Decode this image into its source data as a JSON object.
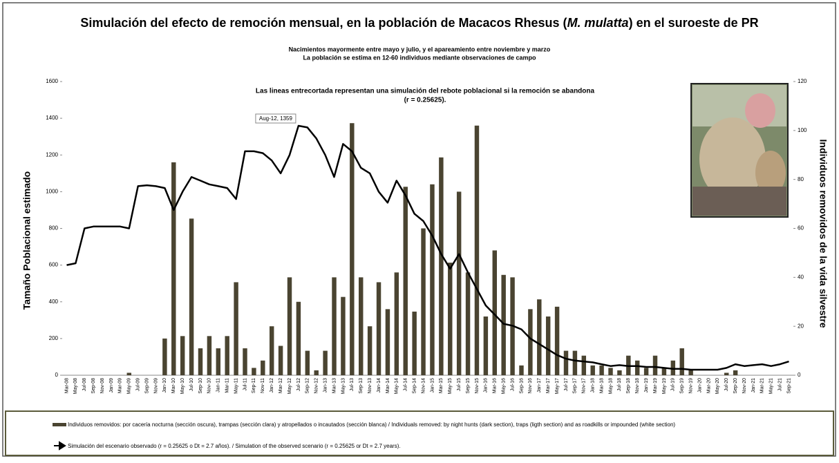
{
  "chart_data": {
    "type": "combo",
    "title": [
      "Simulación del efecto de remoción mensual, en la población de Macacos Rhesus (",
      "M. mulatta",
      ") en el suroeste de PR"
    ],
    "subtitle": [
      "Nacimientos mayormente  entre mayo y julio, y  el apareamiento entre noviembre y marzo",
      "La población se estima en 12-60 individuos mediante observaciones de campo"
    ],
    "annotation": [
      "Las lineas entrecortada representan una simulación del rebote poblacional si la remoción se abandona",
      "(r = 0.25625)."
    ],
    "callout": "Aug-12, 1359",
    "ylabel": "Tamaño Poblacional estimado",
    "y2label": "Individuos removidos de la vida silvestre",
    "categories": [
      "Mar-08",
      "May-08",
      "Jul-08",
      "Sep-08",
      "Nov-08",
      "Jan-09",
      "Mar-09",
      "May-09",
      "Jul-09",
      "Sep-09",
      "Nov-09",
      "Jan-10",
      "Mar-10",
      "May-10",
      "Jul-10",
      "Sep-10",
      "Nov-10",
      "Jan-11",
      "Mar-11",
      "May-11",
      "Jul-11",
      "Sep-11",
      "Nov-11",
      "Jan-12",
      "Mar-12",
      "May-12",
      "Jul-12",
      "Sep-12",
      "Nov-12",
      "Jan-13",
      "Mar-13",
      "May-13",
      "Jul-13",
      "Sep-13",
      "Nov-13",
      "Jan-14",
      "Mar-14",
      "May-14",
      "Jul-14",
      "Sep-14",
      "Nov-14",
      "Jan-15",
      "Mar-15",
      "May-15",
      "Jul-15",
      "Sep-15",
      "Nov-15",
      "Jan-16",
      "Mar-16",
      "May-16",
      "Jul-16",
      "Sep-16",
      "Nov-16",
      "Jan-17",
      "Mar-17",
      "May-17",
      "Jul-17",
      "Sep-17",
      "Nov-17",
      "Jan-18",
      "Mar-18",
      "May-18",
      "Jul-18",
      "Sep-18",
      "Nov-18",
      "Jan-19",
      "Mar-19",
      "May-19",
      "Jul-19",
      "Sep-19",
      "Nov-19",
      "Jan-20",
      "Mar-20",
      "May-20",
      "Jul-20",
      "Sep-20",
      "Nov-20",
      "Jan-21",
      "Mar-21",
      "May-21",
      "Jul-21",
      "Sep-21"
    ],
    "series": [
      {
        "name": "Individuos removidos: por cacería nocturna (sección oscura), trampas (sección clara) y atropellados o incautados (sección blanca) / Individuals removed: by night hunts (dark section), traps (ligth section) and as roadkills or impounded (white section)",
        "type": "bar",
        "axis": "y2",
        "color": "#4a4431",
        "values": [
          0,
          0,
          0,
          0,
          0,
          0,
          0,
          1,
          0,
          0,
          0,
          15,
          87,
          16,
          64,
          11,
          16,
          11,
          16,
          38,
          11,
          3,
          6,
          20,
          12,
          40,
          30,
          10,
          2,
          10,
          40,
          32,
          103,
          40,
          20,
          38,
          27,
          42,
          77,
          26,
          60,
          78,
          89,
          46,
          75,
          42,
          102,
          24,
          51,
          41,
          40,
          4,
          27,
          31,
          24,
          28,
          10,
          10,
          8,
          4,
          4,
          3,
          2,
          8,
          6,
          3,
          8,
          3,
          6,
          11,
          2,
          0,
          0,
          0,
          1,
          2,
          0,
          0,
          0,
          0,
          0,
          0
        ]
      },
      {
        "name": "Simulación del escenario observado (r = 0.25625 o Dt = 2.7 años). / Simulation of the observed scenario (r = 0.25625 or Dt = 2.7 years).",
        "type": "line",
        "axis": "y",
        "color": "#000000",
        "values": [
          600,
          610,
          800,
          810,
          810,
          810,
          810,
          800,
          1030,
          1035,
          1030,
          1020,
          900,
          1000,
          1080,
          1060,
          1040,
          1030,
          1020,
          960,
          1220,
          1220,
          1210,
          1170,
          1100,
          1200,
          1359,
          1350,
          1290,
          1200,
          1080,
          1260,
          1220,
          1130,
          1100,
          1000,
          940,
          1060,
          980,
          880,
          840,
          760,
          660,
          580,
          660,
          560,
          470,
          380,
          330,
          280,
          270,
          250,
          200,
          170,
          140,
          110,
          90,
          80,
          75,
          70,
          60,
          50,
          55,
          50,
          50,
          45,
          45,
          40,
          35,
          35,
          30,
          30,
          30,
          30,
          40,
          60,
          50,
          55,
          60,
          50,
          60,
          75
        ]
      }
    ],
    "ylim": [
      0,
      1600
    ],
    "yticks": [
      0,
      200,
      400,
      600,
      800,
      1000,
      1200,
      1400,
      1600
    ],
    "y2lim": [
      0,
      120
    ],
    "y2ticks": [
      0,
      20,
      40,
      60,
      80,
      100,
      120
    ],
    "grid": false
  }
}
